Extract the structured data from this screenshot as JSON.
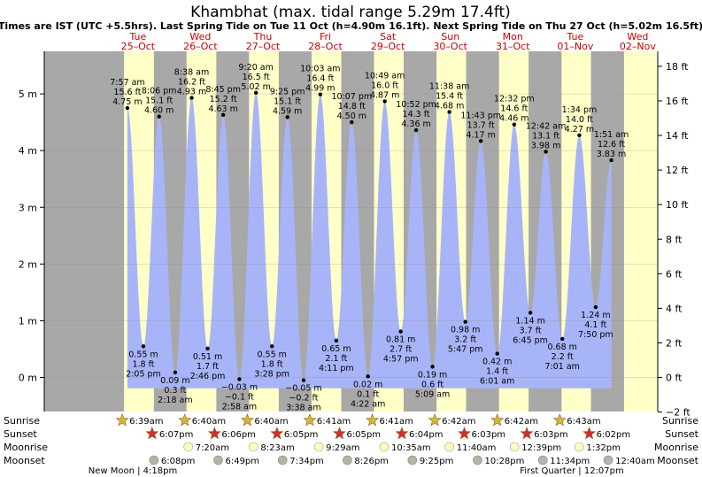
{
  "header": {
    "title": "Khambhat (max. tidal range 5.29m 17.4ft)",
    "subtitle": "Times are IST (UTC +5.5hrs). Last Spring Tide on Tue 11 Oct (h=4.90m 16.1ft). Next Spring Tide on Thu 27 Oct (h=5.02m 16.5ft)"
  },
  "rows": {
    "sunrise": "Sunrise",
    "sunset": "Sunset",
    "moonrise": "Moonrise",
    "moonset": "Moonset"
  },
  "colors": {
    "night": "#a8a8a8",
    "day": "#ffffc8",
    "water": "#a8b4f8",
    "day_label": "#cc0000",
    "sun_star": "#d8b830",
    "sunset_star": "#cc3030",
    "moonrise_circle": "#ffffc0",
    "moonset_circle": "#b4b4a8"
  },
  "chart_data": {
    "type": "area",
    "title": "Khambhat (max. tidal range 5.29m 17.4ft)",
    "x_range_days": [
      -1.0,
      8.82
    ],
    "ylim_m": [
      -0.6,
      5.75
    ],
    "y_left_ticks": [
      {
        "v": 0,
        "label": "0 m"
      },
      {
        "v": 1,
        "label": "1 m"
      },
      {
        "v": 2,
        "label": "2 m"
      },
      {
        "v": 3,
        "label": "3 m"
      },
      {
        "v": 4,
        "label": "4 m"
      },
      {
        "v": 5,
        "label": "5 m"
      }
    ],
    "y_right_ticks": [
      {
        "ft": -2,
        "label": "−2 ft"
      },
      {
        "ft": 0,
        "label": "0 ft"
      },
      {
        "ft": 2,
        "label": "2 ft"
      },
      {
        "ft": 4,
        "label": "4 ft"
      },
      {
        "ft": 6,
        "label": "6 ft"
      },
      {
        "ft": 8,
        "label": "8 ft"
      },
      {
        "ft": 10,
        "label": "10 ft"
      },
      {
        "ft": 12,
        "label": "12 ft"
      },
      {
        "ft": 14,
        "label": "14 ft"
      },
      {
        "ft": 16,
        "label": "16 ft"
      },
      {
        "ft": 18,
        "label": "18 ft"
      }
    ],
    "days": [
      {
        "dow": "Tue",
        "date": "25–Oct"
      },
      {
        "dow": "Wed",
        "date": "26–Oct"
      },
      {
        "dow": "Thu",
        "date": "27–Oct"
      },
      {
        "dow": "Fri",
        "date": "28–Oct"
      },
      {
        "dow": "Sat",
        "date": "29–Oct"
      },
      {
        "dow": "Sun",
        "date": "30–Oct"
      },
      {
        "dow": "Mon",
        "date": "31–Oct"
      },
      {
        "dow": "Tue",
        "date": "01–Nov"
      },
      {
        "dow": "Wed",
        "date": "02–Nov"
      }
    ],
    "tides": [
      {
        "type": "high",
        "day": 0,
        "time": "7:57 am",
        "ft": "15.6 ft",
        "m": 4.75,
        "ml": "4.75 m"
      },
      {
        "type": "low",
        "day": 0,
        "time": "2:05 pm",
        "ft": "1.8 ft",
        "m": 0.55,
        "ml": "0.55 m"
      },
      {
        "type": "high",
        "day": 0,
        "time": "8:06 pm",
        "ft": "15.1 ft",
        "m": 4.6,
        "ml": "4.60 m"
      },
      {
        "type": "low",
        "day": 1,
        "time": "2:18 am",
        "ft": "0.3 ft",
        "m": 0.09,
        "ml": "0.09 m"
      },
      {
        "type": "high",
        "day": 1,
        "time": "8:38 am",
        "ft": "16.2 ft",
        "m": 4.93,
        "ml": "4.93 m"
      },
      {
        "type": "low",
        "day": 1,
        "time": "2:46 pm",
        "ft": "1.7 ft",
        "m": 0.51,
        "ml": "0.51 m"
      },
      {
        "type": "high",
        "day": 1,
        "time": "8:45 pm",
        "ft": "15.2 ft",
        "m": 4.63,
        "ml": "4.63 m"
      },
      {
        "type": "low",
        "day": 2,
        "time": "2:58 am",
        "ft": "−0.1 ft",
        "m": -0.03,
        "ml": "−0.03 m"
      },
      {
        "type": "high",
        "day": 2,
        "time": "9:20 am",
        "ft": "16.5 ft",
        "m": 5.02,
        "ml": "5.02 m"
      },
      {
        "type": "low",
        "day": 2,
        "time": "3:28 pm",
        "ft": "1.8 ft",
        "m": 0.55,
        "ml": "0.55 m"
      },
      {
        "type": "high",
        "day": 2,
        "time": "9:25 pm",
        "ft": "15.1 ft",
        "m": 4.59,
        "ml": "4.59 m"
      },
      {
        "type": "low",
        "day": 3,
        "time": "3:38 am",
        "ft": "−0.2 ft",
        "m": -0.05,
        "ml": "−0.05 m"
      },
      {
        "type": "high",
        "day": 3,
        "time": "10:03 am",
        "ft": "16.4 ft",
        "m": 4.99,
        "ml": "4.99 m"
      },
      {
        "type": "low",
        "day": 3,
        "time": "4:11 pm",
        "ft": "2.1 ft",
        "m": 0.65,
        "ml": "0.65 m"
      },
      {
        "type": "high",
        "day": 3,
        "time": "10:07 pm",
        "ft": "14.8 ft",
        "m": 4.5,
        "ml": "4.50 m"
      },
      {
        "type": "low",
        "day": 4,
        "time": "4:22 am",
        "ft": "0.1 ft",
        "m": 0.02,
        "ml": "0.02 m"
      },
      {
        "type": "high",
        "day": 4,
        "time": "10:49 am",
        "ft": "16.0 ft",
        "m": 4.87,
        "ml": "4.87 m"
      },
      {
        "type": "low",
        "day": 4,
        "time": "4:57 pm",
        "ft": "2.7 ft",
        "m": 0.81,
        "ml": "0.81 m"
      },
      {
        "type": "high",
        "day": 4,
        "time": "10:52 pm",
        "ft": "14.3 ft",
        "m": 4.36,
        "ml": "4.36 m"
      },
      {
        "type": "low",
        "day": 5,
        "time": "5:09 am",
        "ft": "0.6 ft",
        "m": 0.19,
        "ml": "0.19 m"
      },
      {
        "type": "high",
        "day": 5,
        "time": "11:38 am",
        "ft": "15.4 ft",
        "m": 4.68,
        "ml": "4.68 m"
      },
      {
        "type": "low",
        "day": 5,
        "time": "5:47 pm",
        "ft": "3.2 ft",
        "m": 0.98,
        "ml": "0.98 m"
      },
      {
        "type": "high",
        "day": 5,
        "time": "11:43 pm",
        "ft": "13.7 ft",
        "m": 4.17,
        "ml": "4.17 m"
      },
      {
        "type": "low",
        "day": 6,
        "time": "6:01 am",
        "ft": "1.4 ft",
        "m": 0.42,
        "ml": "0.42 m"
      },
      {
        "type": "high",
        "day": 6,
        "time": "12:32 pm",
        "ft": "14.6 ft",
        "m": 4.46,
        "ml": "4.46 m"
      },
      {
        "type": "low",
        "day": 6,
        "time": "6:45 pm",
        "ft": "3.7 ft",
        "m": 1.14,
        "ml": "1.14 m"
      },
      {
        "type": "high",
        "day": 7,
        "time": "12:42 am",
        "ft": "13.1 ft",
        "m": 3.98,
        "ml": "3.98 m"
      },
      {
        "type": "low",
        "day": 7,
        "time": "7:01 am",
        "ft": "2.2 ft",
        "m": 0.68,
        "ml": "0.68 m"
      },
      {
        "type": "high",
        "day": 7,
        "time": "1:34 pm",
        "ft": "14.0 ft",
        "m": 4.27,
        "ml": "4.27 m"
      },
      {
        "type": "low",
        "day": 7,
        "time": "7:50 pm",
        "ft": "4.1 ft",
        "m": 1.24,
        "ml": "1.24 m"
      },
      {
        "type": "high",
        "day": 8,
        "time": "1:51 am",
        "ft": "12.6 ft",
        "m": 3.83,
        "ml": "3.83 m"
      }
    ],
    "sunrise": [
      "6:39am",
      "6:40am",
      "6:40am",
      "6:41am",
      "6:41am",
      "6:42am",
      "6:42am",
      "6:43am"
    ],
    "sunset": [
      "6:07pm",
      "6:06pm",
      "6:05pm",
      "6:05pm",
      "6:04pm",
      "6:03pm",
      "6:03pm",
      "6:02pm"
    ],
    "moonrise": [
      {
        "day": 1,
        "time": "7:20am"
      },
      {
        "day": 2,
        "time": "8:23am"
      },
      {
        "day": 3,
        "time": "9:29am"
      },
      {
        "day": 4,
        "time": "10:35am"
      },
      {
        "day": 5,
        "time": "11:40am"
      },
      {
        "day": 6,
        "time": "12:39pm"
      },
      {
        "day": 7,
        "time": "1:32pm"
      }
    ],
    "moonset": [
      {
        "day": 0,
        "time": "6:08pm"
      },
      {
        "day": 1,
        "time": "6:49pm"
      },
      {
        "day": 2,
        "time": "7:34pm"
      },
      {
        "day": 3,
        "time": "8:26pm"
      },
      {
        "day": 4,
        "time": "9:25pm"
      },
      {
        "day": 5,
        "time": "10:28pm"
      },
      {
        "day": 6,
        "time": "11:34pm"
      },
      {
        "day": 8,
        "time": "12:40am"
      }
    ],
    "moon_phases": [
      {
        "label": "New Moon | 4:18pm"
      },
      {
        "label": "First Quarter | 12:07pm"
      }
    ]
  }
}
